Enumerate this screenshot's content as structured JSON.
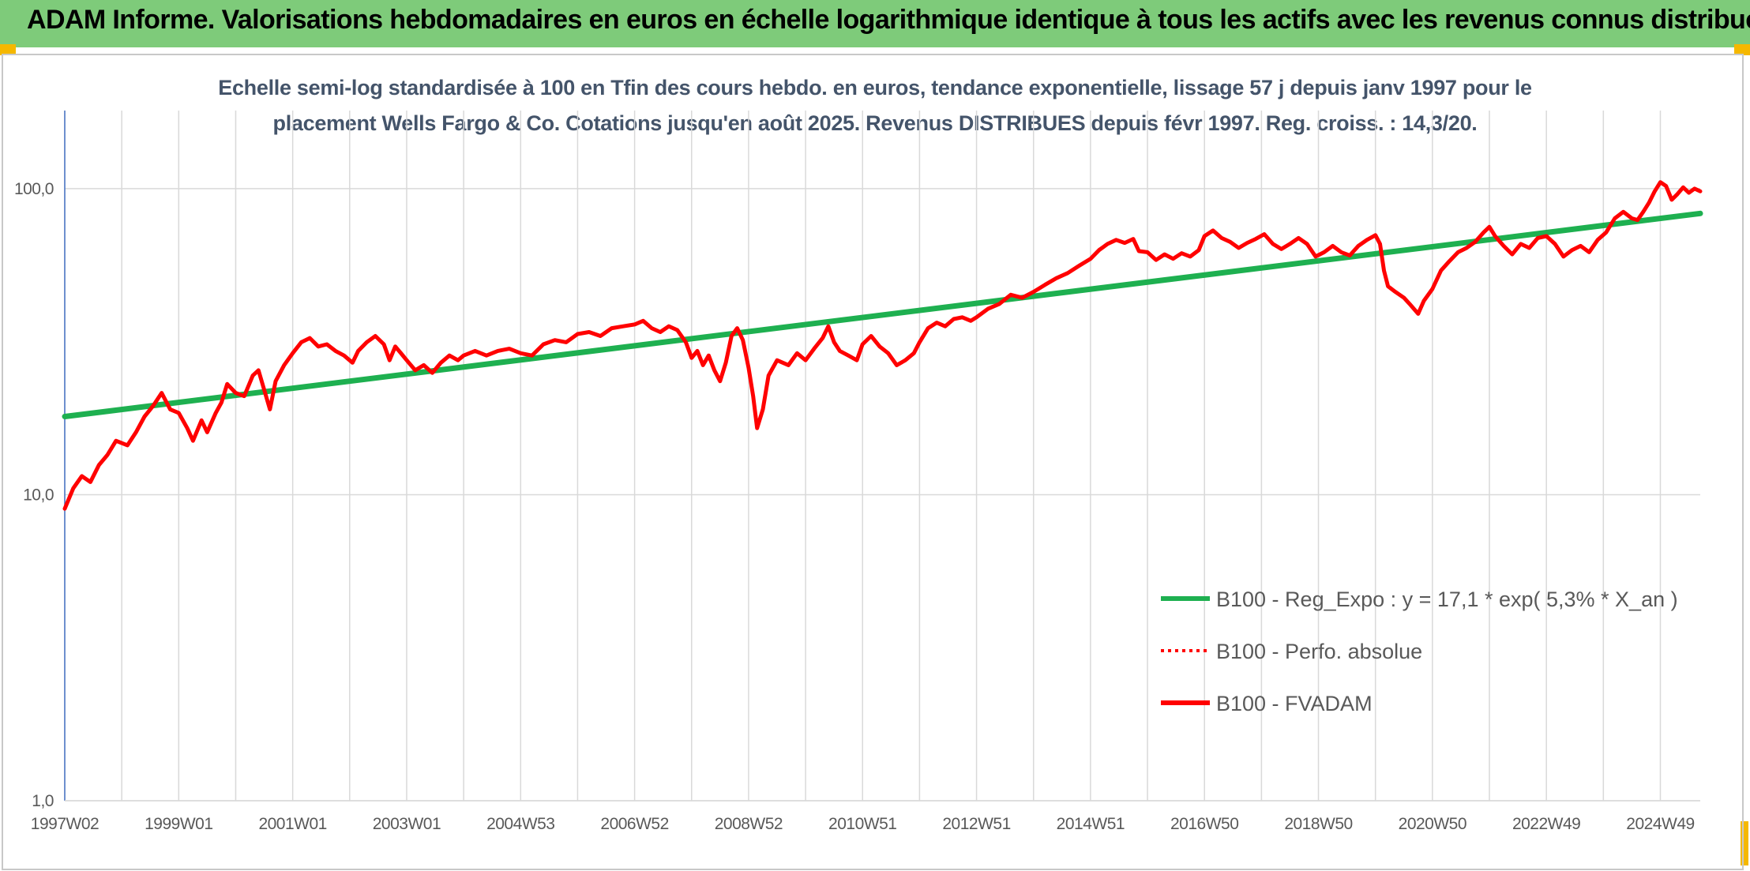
{
  "header": {
    "title": "ADAM Informe. Valorisations hebdomadaires en euros en échelle logarithmique identique à tous les actifs avec les revenus connus distribués"
  },
  "chart_data": {
    "type": "line",
    "title_line1": "Echelle semi-log standardisée à 100 en Tfin des cours hebdo. en euros, tendance exponentielle, lissage 57 j depuis janv 1997 pour le",
    "title_line2": "placement Wells Fargo & Co. Cotations jusqu'en août 2025. Revenus DISTRIBUES depuis févr 1997. Reg. croiss. : 14,3/20.",
    "y_scale": "log",
    "ylim": [
      1,
      180
    ],
    "y_ticks": [
      {
        "value": 1,
        "label": "1,0"
      },
      {
        "value": 10,
        "label": "10,0"
      },
      {
        "value": 100,
        "label": "100,0"
      }
    ],
    "xlim": [
      1997.0,
      2025.7
    ],
    "x_ticks": [
      {
        "x": 1997.0,
        "label": "1997W02"
      },
      {
        "x": 1999.0,
        "label": "1999W01"
      },
      {
        "x": 2001.0,
        "label": "2001W01"
      },
      {
        "x": 2003.0,
        "label": "2003W01"
      },
      {
        "x": 2005.0,
        "label": "2004W53"
      },
      {
        "x": 2007.0,
        "label": "2006W52"
      },
      {
        "x": 2009.0,
        "label": "2008W52"
      },
      {
        "x": 2011.0,
        "label": "2010W51"
      },
      {
        "x": 2013.0,
        "label": "2012W51"
      },
      {
        "x": 2015.0,
        "label": "2014W51"
      },
      {
        "x": 2017.0,
        "label": "2016W50"
      },
      {
        "x": 2019.0,
        "label": "2018W50"
      },
      {
        "x": 2021.0,
        "label": "2020W50"
      },
      {
        "x": 2023.0,
        "label": "2022W49"
      },
      {
        "x": 2025.0,
        "label": "2024W49"
      }
    ],
    "grid": true,
    "legend_position": "bottom-right",
    "series": [
      {
        "name": "B100 - Reg_Expo : y = 17,1 * exp( 5,3% *  X_an )",
        "color": "#1eb050",
        "style": "solid",
        "points": [
          [
            1997.0,
            18.0
          ],
          [
            2025.7,
            83.0
          ]
        ]
      },
      {
        "name": "B100 - Perfo. absolue",
        "color": "#ff0000",
        "style": "dotted",
        "points": []
      },
      {
        "name": "B100 - FVADAM",
        "color": "#ff0000",
        "style": "solid",
        "points": [
          [
            1997.0,
            9.0
          ],
          [
            1997.15,
            10.5
          ],
          [
            1997.3,
            11.5
          ],
          [
            1997.45,
            11.0
          ],
          [
            1997.6,
            12.5
          ],
          [
            1997.75,
            13.5
          ],
          [
            1997.9,
            15.0
          ],
          [
            1998.1,
            14.5
          ],
          [
            1998.25,
            16.0
          ],
          [
            1998.4,
            18.0
          ],
          [
            1998.55,
            19.5
          ],
          [
            1998.7,
            21.5
          ],
          [
            1998.85,
            19.0
          ],
          [
            1999.0,
            18.5
          ],
          [
            1999.15,
            16.5
          ],
          [
            1999.25,
            15.0
          ],
          [
            1999.4,
            17.5
          ],
          [
            1999.5,
            16.0
          ],
          [
            1999.65,
            18.5
          ],
          [
            1999.75,
            20.0
          ],
          [
            1999.85,
            23.0
          ],
          [
            2000.0,
            21.5
          ],
          [
            2000.15,
            21.0
          ],
          [
            2000.3,
            24.5
          ],
          [
            2000.4,
            25.5
          ],
          [
            2000.5,
            22.0
          ],
          [
            2000.6,
            19.0
          ],
          [
            2000.7,
            23.5
          ],
          [
            2000.85,
            26.5
          ],
          [
            2001.0,
            29.0
          ],
          [
            2001.15,
            31.5
          ],
          [
            2001.3,
            32.5
          ],
          [
            2001.45,
            30.5
          ],
          [
            2001.6,
            31.0
          ],
          [
            2001.75,
            29.5
          ],
          [
            2001.9,
            28.5
          ],
          [
            2002.05,
            27.0
          ],
          [
            2002.15,
            29.5
          ],
          [
            2002.3,
            31.5
          ],
          [
            2002.45,
            33.0
          ],
          [
            2002.6,
            31.0
          ],
          [
            2002.7,
            27.5
          ],
          [
            2002.8,
            30.5
          ],
          [
            2002.9,
            29.0
          ],
          [
            2003.0,
            27.5
          ],
          [
            2003.15,
            25.5
          ],
          [
            2003.3,
            26.5
          ],
          [
            2003.45,
            25.0
          ],
          [
            2003.6,
            27.0
          ],
          [
            2003.75,
            28.5
          ],
          [
            2003.9,
            27.5
          ],
          [
            2004.0,
            28.5
          ],
          [
            2004.2,
            29.5
          ],
          [
            2004.4,
            28.5
          ],
          [
            2004.6,
            29.5
          ],
          [
            2004.8,
            30.0
          ],
          [
            2005.0,
            29.0
          ],
          [
            2005.2,
            28.5
          ],
          [
            2005.4,
            31.0
          ],
          [
            2005.6,
            32.0
          ],
          [
            2005.8,
            31.5
          ],
          [
            2006.0,
            33.5
          ],
          [
            2006.2,
            34.0
          ],
          [
            2006.4,
            33.0
          ],
          [
            2006.6,
            35.0
          ],
          [
            2006.8,
            35.5
          ],
          [
            2007.0,
            36.0
          ],
          [
            2007.15,
            37.0
          ],
          [
            2007.3,
            35.0
          ],
          [
            2007.45,
            34.0
          ],
          [
            2007.6,
            35.5
          ],
          [
            2007.75,
            34.5
          ],
          [
            2007.9,
            31.5
          ],
          [
            2008.0,
            28.0
          ],
          [
            2008.1,
            29.5
          ],
          [
            2008.2,
            26.5
          ],
          [
            2008.3,
            28.5
          ],
          [
            2008.4,
            25.5
          ],
          [
            2008.5,
            23.5
          ],
          [
            2008.6,
            27.0
          ],
          [
            2008.7,
            33.0
          ],
          [
            2008.8,
            35.0
          ],
          [
            2008.9,
            32.0
          ],
          [
            2009.0,
            26.0
          ],
          [
            2009.08,
            21.0
          ],
          [
            2009.15,
            16.5
          ],
          [
            2009.25,
            19.0
          ],
          [
            2009.35,
            24.5
          ],
          [
            2009.5,
            27.5
          ],
          [
            2009.7,
            26.5
          ],
          [
            2009.85,
            29.0
          ],
          [
            2010.0,
            27.5
          ],
          [
            2010.15,
            30.0
          ],
          [
            2010.3,
            32.5
          ],
          [
            2010.4,
            35.5
          ],
          [
            2010.5,
            31.5
          ],
          [
            2010.6,
            29.5
          ],
          [
            2010.75,
            28.5
          ],
          [
            2010.9,
            27.5
          ],
          [
            2011.0,
            31.0
          ],
          [
            2011.15,
            33.0
          ],
          [
            2011.3,
            30.5
          ],
          [
            2011.45,
            29.0
          ],
          [
            2011.6,
            26.5
          ],
          [
            2011.75,
            27.5
          ],
          [
            2011.9,
            29.0
          ],
          [
            2012.0,
            31.5
          ],
          [
            2012.15,
            35.0
          ],
          [
            2012.3,
            36.5
          ],
          [
            2012.45,
            35.5
          ],
          [
            2012.6,
            37.5
          ],
          [
            2012.75,
            38.0
          ],
          [
            2012.9,
            37.0
          ],
          [
            2013.0,
            38.0
          ],
          [
            2013.2,
            40.5
          ],
          [
            2013.4,
            42.0
          ],
          [
            2013.6,
            45.0
          ],
          [
            2013.8,
            44.0
          ],
          [
            2014.0,
            46.0
          ],
          [
            2014.2,
            48.5
          ],
          [
            2014.4,
            51.0
          ],
          [
            2014.6,
            53.0
          ],
          [
            2014.8,
            56.0
          ],
          [
            2015.0,
            59.0
          ],
          [
            2015.15,
            63.0
          ],
          [
            2015.3,
            66.0
          ],
          [
            2015.45,
            68.0
          ],
          [
            2015.6,
            66.5
          ],
          [
            2015.75,
            68.5
          ],
          [
            2015.85,
            62.5
          ],
          [
            2016.0,
            62.0
          ],
          [
            2016.15,
            58.5
          ],
          [
            2016.3,
            61.0
          ],
          [
            2016.45,
            59.0
          ],
          [
            2016.6,
            61.5
          ],
          [
            2016.75,
            60.0
          ],
          [
            2016.9,
            63.0
          ],
          [
            2017.0,
            70.0
          ],
          [
            2017.15,
            73.0
          ],
          [
            2017.3,
            69.0
          ],
          [
            2017.45,
            67.0
          ],
          [
            2017.6,
            64.0
          ],
          [
            2017.75,
            66.5
          ],
          [
            2017.9,
            68.5
          ],
          [
            2018.05,
            71.0
          ],
          [
            2018.2,
            66.0
          ],
          [
            2018.35,
            63.5
          ],
          [
            2018.5,
            66.0
          ],
          [
            2018.65,
            69.0
          ],
          [
            2018.8,
            66.0
          ],
          [
            2018.95,
            60.0
          ],
          [
            2019.1,
            62.0
          ],
          [
            2019.25,
            65.0
          ],
          [
            2019.4,
            62.0
          ],
          [
            2019.55,
            60.5
          ],
          [
            2019.7,
            65.0
          ],
          [
            2019.85,
            68.0
          ],
          [
            2020.0,
            70.5
          ],
          [
            2020.08,
            66.0
          ],
          [
            2020.15,
            54.0
          ],
          [
            2020.22,
            48.0
          ],
          [
            2020.35,
            46.0
          ],
          [
            2020.5,
            44.0
          ],
          [
            2020.6,
            42.0
          ],
          [
            2020.75,
            39.0
          ],
          [
            2020.85,
            43.0
          ],
          [
            2021.0,
            47.0
          ],
          [
            2021.15,
            54.0
          ],
          [
            2021.3,
            58.0
          ],
          [
            2021.45,
            62.0
          ],
          [
            2021.6,
            64.0
          ],
          [
            2021.75,
            67.0
          ],
          [
            2021.9,
            72.0
          ],
          [
            2022.0,
            75.0
          ],
          [
            2022.1,
            70.0
          ],
          [
            2022.25,
            65.0
          ],
          [
            2022.4,
            61.0
          ],
          [
            2022.55,
            66.0
          ],
          [
            2022.7,
            64.0
          ],
          [
            2022.85,
            69.0
          ],
          [
            2023.0,
            70.0
          ],
          [
            2023.15,
            66.0
          ],
          [
            2023.3,
            60.0
          ],
          [
            2023.45,
            63.0
          ],
          [
            2023.6,
            65.0
          ],
          [
            2023.75,
            62.0
          ],
          [
            2023.9,
            68.0
          ],
          [
            2024.05,
            72.0
          ],
          [
            2024.2,
            80.0
          ],
          [
            2024.35,
            84.0
          ],
          [
            2024.5,
            80.0
          ],
          [
            2024.6,
            79.0
          ],
          [
            2024.7,
            84.0
          ],
          [
            2024.8,
            90.0
          ],
          [
            2024.9,
            98.0
          ],
          [
            2025.0,
            105.0
          ],
          [
            2025.1,
            102.0
          ],
          [
            2025.2,
            92.0
          ],
          [
            2025.3,
            96.0
          ],
          [
            2025.4,
            101.0
          ],
          [
            2025.5,
            97.0
          ],
          [
            2025.6,
            100.0
          ],
          [
            2025.7,
            98.0
          ]
        ]
      }
    ]
  }
}
